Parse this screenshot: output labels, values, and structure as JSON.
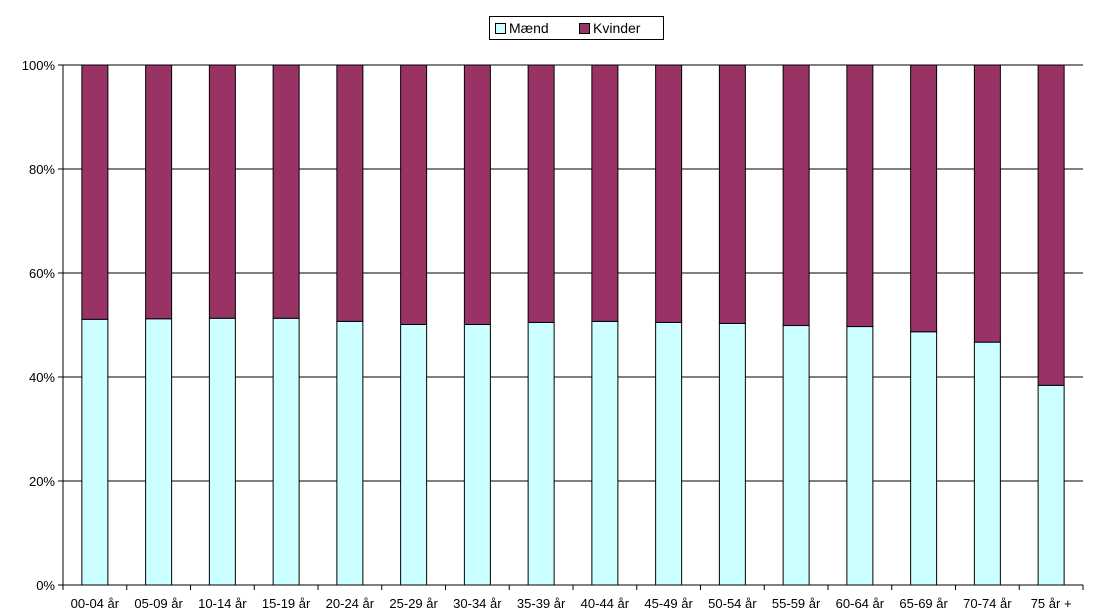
{
  "chart_data": {
    "type": "bar",
    "stacked": true,
    "normalized_percent": true,
    "categories": [
      "00-04 år",
      "05-09 år",
      "10-14 år",
      "15-19 år",
      "20-24 år",
      "25-29 år",
      "30-34 år",
      "35-39 år",
      "40-44 år",
      "45-49 år",
      "50-54 år",
      "55-59 år",
      "60-64 år",
      "65-69 år",
      "70-74 år",
      "75 år +"
    ],
    "series": [
      {
        "name": "Mænd",
        "color": "#ccffff",
        "values": [
          51.1,
          51.2,
          51.3,
          51.3,
          50.7,
          50.1,
          50.1,
          50.5,
          50.7,
          50.5,
          50.3,
          49.9,
          49.7,
          48.7,
          46.7,
          38.4
        ]
      },
      {
        "name": "Kvinder",
        "color": "#993366",
        "values": [
          48.9,
          48.8,
          48.7,
          48.7,
          49.3,
          49.9,
          49.9,
          49.5,
          49.3,
          49.5,
          49.7,
          50.1,
          50.3,
          51.3,
          53.3,
          61.6
        ]
      }
    ],
    "yticks": [
      "0%",
      "20%",
      "40%",
      "60%",
      "80%",
      "100%"
    ],
    "ylim": [
      0,
      100
    ],
    "grid": true,
    "legend_position": "top"
  }
}
